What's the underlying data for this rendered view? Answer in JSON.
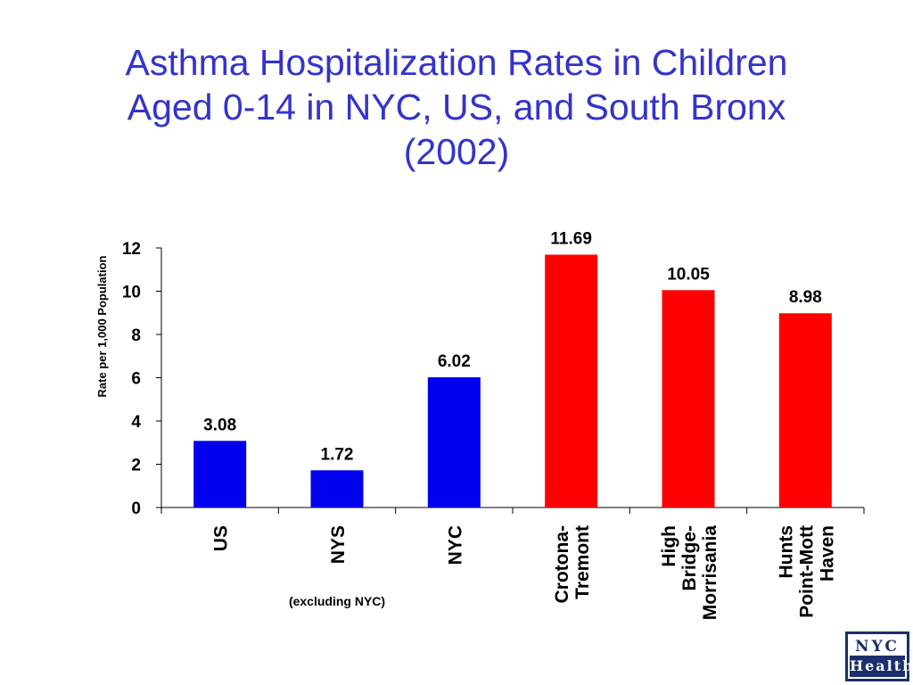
{
  "slide": {
    "title_lines": [
      "Asthma Hospitalization Rates in Children",
      "Aged 0-14 in NYC, US, and South Bronx",
      "(2002)"
    ]
  },
  "chart_data": {
    "type": "bar",
    "title": "",
    "ylabel": "Rate per 1,000 Population",
    "xlabel": "",
    "ylim": [
      0,
      12
    ],
    "yticks": [
      0,
      2,
      4,
      6,
      8,
      10,
      12
    ],
    "grid": false,
    "categories": [
      [
        "US"
      ],
      [
        "NYS"
      ],
      [
        "NYC"
      ],
      [
        "Crotona-",
        "Tremont"
      ],
      [
        "High",
        "Bridge-",
        "Morrisania"
      ],
      [
        "Hunts",
        "Point-Mott",
        "Haven"
      ]
    ],
    "values": [
      3.08,
      1.72,
      6.02,
      11.69,
      10.05,
      8.98
    ],
    "value_labels": [
      "3.08",
      "1.72",
      "6.02",
      "11.69",
      "10.05",
      "8.98"
    ],
    "colors": [
      "#0000ee",
      "#0000ee",
      "#0000ee",
      "#ff0000",
      "#ff0000",
      "#ff0000"
    ],
    "annotation": "(excluding NYC)"
  },
  "logo": {
    "top": "NYC",
    "bottom": "Health"
  }
}
